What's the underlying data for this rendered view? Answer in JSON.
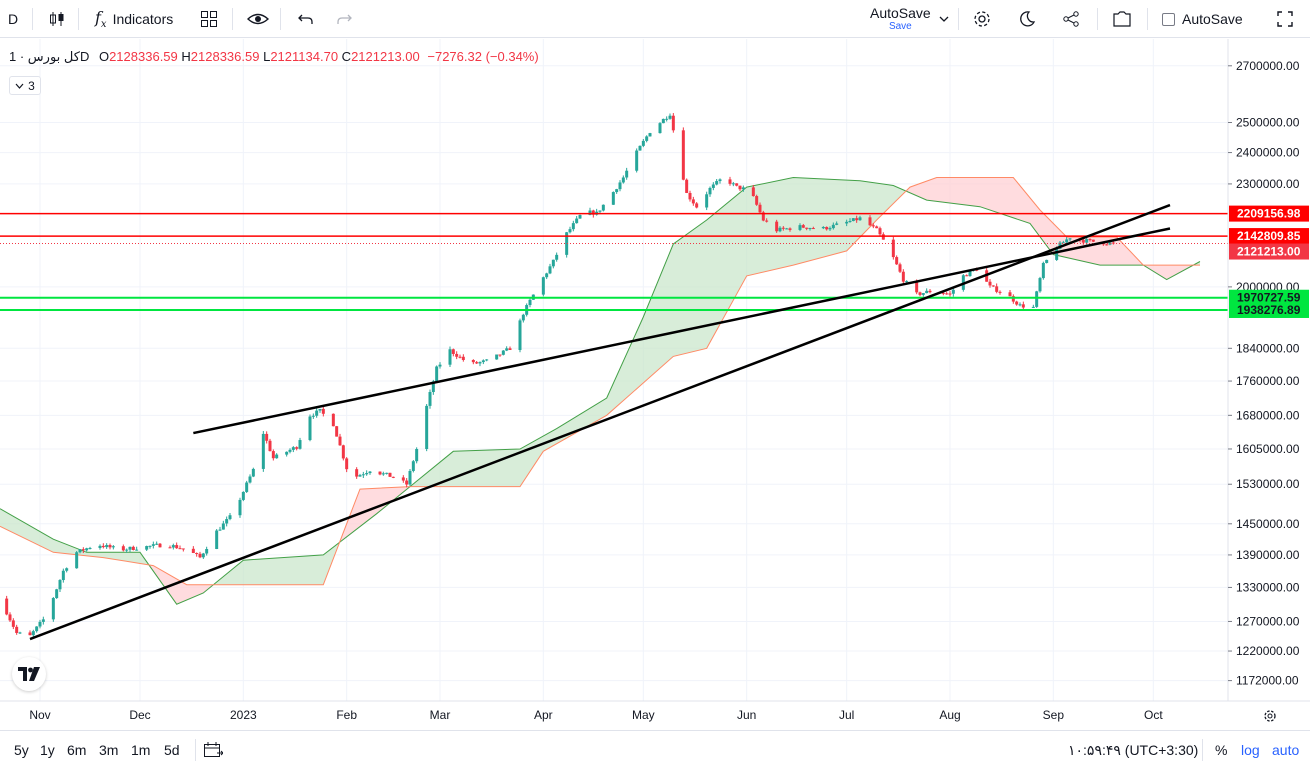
{
  "toolbar": {
    "interval": "D",
    "indicators_label": "Indicators",
    "autosave_label": "AutoSave",
    "autosave_sub": "Save",
    "autosave_checkbox_label": "AutoSave"
  },
  "legend": {
    "symbol": "کل بورس",
    "interval": "1D",
    "open_label": "O",
    "open": "2128336.59",
    "high_label": "H",
    "high": "2128336.59",
    "low_label": "L",
    "low": "2121134.70",
    "close_label": "C",
    "close": "2121213.00",
    "change": "−7276.32 (−0.34%)",
    "collapsed_count": "3"
  },
  "bottom": {
    "ranges": [
      "5y",
      "1y",
      "6m",
      "3m",
      "1m",
      "5d"
    ],
    "clock": "۱۰:۵۹:۴۹ (UTC+3:30)",
    "percent_label": "%",
    "log_label": "log",
    "auto_label": "auto"
  },
  "colors": {
    "up": "#26a69a",
    "down": "#f23645",
    "cloud_bull": "#c8e6c9",
    "cloud_bear": "#ffcdd2",
    "span_a": "#43a047",
    "span_b": "#ff8a65",
    "support": "#00e640",
    "resistance": "#ff0000"
  },
  "chart_data": {
    "type": "candlestick",
    "scale": "log",
    "ylim": [
      1140000,
      2800000
    ],
    "y_ticks": [
      2700000,
      2500000,
      2400000,
      2300000,
      2000000,
      1840000,
      1760000,
      1680000,
      1605000,
      1530000,
      1450000,
      1390000,
      1330000,
      1270000,
      1220000,
      1172000
    ],
    "y_tick_labels": [
      "2700000.00",
      "2500000.00",
      "2400000.00",
      "2300000.00",
      "2000000.00",
      "1840000.00",
      "1760000.00",
      "1680000.00",
      "1605000.00",
      "1530000.00",
      "1450000.00",
      "1390000.00",
      "1330000.00",
      "1270000.00",
      "1220000.00",
      "1172000.00"
    ],
    "x_labels": [
      {
        "label": "Nov",
        "date": "2022-11-01"
      },
      {
        "label": "Dec",
        "date": "2022-12-01"
      },
      {
        "label": "2023",
        "date": "2023-01-01"
      },
      {
        "label": "Feb",
        "date": "2023-02-01"
      },
      {
        "label": "Mar",
        "date": "2023-03-01"
      },
      {
        "label": "Apr",
        "date": "2023-04-01"
      },
      {
        "label": "May",
        "date": "2023-05-01"
      },
      {
        "label": "Jun",
        "date": "2023-06-01"
      },
      {
        "label": "Jul",
        "date": "2023-07-01"
      },
      {
        "label": "Aug",
        "date": "2023-08-01"
      },
      {
        "label": "Sep",
        "date": "2023-09-01"
      },
      {
        "label": "Oct",
        "date": "2023-10-01"
      }
    ],
    "price_levels": [
      {
        "value": 2209156.98,
        "label": "2209156.98",
        "kind": "resistance"
      },
      {
        "value": 2142809.85,
        "label": "2142809.85",
        "kind": "resistance"
      },
      {
        "value": 1970727.59,
        "label": "1970727.59",
        "kind": "support"
      },
      {
        "value": 1938276.89,
        "label": "1938276.89",
        "kind": "support"
      }
    ],
    "last_price": {
      "value": 2121213.0,
      "label": "2121213.00"
    },
    "close_path": [
      [
        "2022-10-20",
        1310000
      ],
      [
        "2022-10-25",
        1250000
      ],
      [
        "2022-10-29",
        1245000
      ],
      [
        "2022-11-03",
        1280000
      ],
      [
        "2022-11-08",
        1360000
      ],
      [
        "2022-11-12",
        1395000
      ],
      [
        "2022-11-18",
        1410000
      ],
      [
        "2022-11-25",
        1400000
      ],
      [
        "2022-12-02",
        1405000
      ],
      [
        "2022-12-09",
        1410000
      ],
      [
        "2022-12-15",
        1400000
      ],
      [
        "2022-12-19",
        1385000
      ],
      [
        "2022-12-24",
        1435000
      ],
      [
        "2022-12-29",
        1470000
      ],
      [
        "2023-01-04",
        1560000
      ],
      [
        "2023-01-07",
        1640000
      ],
      [
        "2023-01-10",
        1585000
      ],
      [
        "2023-01-17",
        1610000
      ],
      [
        "2023-01-21",
        1680000
      ],
      [
        "2023-01-24",
        1690000
      ],
      [
        "2023-01-28",
        1660000
      ],
      [
        "2023-02-02",
        1540000
      ],
      [
        "2023-02-08",
        1560000
      ],
      [
        "2023-02-15",
        1545000
      ],
      [
        "2023-02-19",
        1530000
      ],
      [
        "2023-02-22",
        1605000
      ],
      [
        "2023-02-25",
        1700000
      ],
      [
        "2023-02-28",
        1790000
      ],
      [
        "2023-03-04",
        1835000
      ],
      [
        "2023-03-10",
        1800000
      ],
      [
        "2023-03-16",
        1810000
      ],
      [
        "2023-03-22",
        1840000
      ],
      [
        "2023-03-26",
        1930000
      ],
      [
        "2023-03-31",
        2010000
      ],
      [
        "2023-04-04",
        2070000
      ],
      [
        "2023-04-08",
        2150000
      ],
      [
        "2023-04-13",
        2215000
      ],
      [
        "2023-04-17",
        2210000
      ],
      [
        "2023-04-21",
        2260000
      ],
      [
        "2023-04-25",
        2320000
      ],
      [
        "2023-04-29",
        2400000
      ],
      [
        "2023-05-03",
        2470000
      ],
      [
        "2023-05-06",
        2500000
      ],
      [
        "2023-05-09",
        2530000
      ],
      [
        "2023-05-11",
        2420000
      ],
      [
        "2023-05-14",
        2270000
      ],
      [
        "2023-05-17",
        2230000
      ],
      [
        "2023-05-21",
        2285000
      ],
      [
        "2023-05-25",
        2320000
      ],
      [
        "2023-05-29",
        2290000
      ],
      [
        "2023-06-02",
        2280000
      ],
      [
        "2023-06-06",
        2190000
      ],
      [
        "2023-06-10",
        2160000
      ],
      [
        "2023-06-17",
        2170000
      ],
      [
        "2023-06-24",
        2165000
      ],
      [
        "2023-06-30",
        2180000
      ],
      [
        "2023-07-05",
        2195000
      ],
      [
        "2023-07-10",
        2160000
      ],
      [
        "2023-07-14",
        2100000
      ],
      [
        "2023-07-18",
        2020000
      ],
      [
        "2023-07-22",
        1980000
      ],
      [
        "2023-07-27",
        1990000
      ],
      [
        "2023-08-01",
        1980000
      ],
      [
        "2023-08-05",
        2030000
      ],
      [
        "2023-08-09",
        2050000
      ],
      [
        "2023-08-13",
        2000000
      ],
      [
        "2023-08-18",
        1980000
      ],
      [
        "2023-08-22",
        1950000
      ],
      [
        "2023-08-26",
        1945000
      ],
      [
        "2023-08-29",
        2060000
      ],
      [
        "2023-09-02",
        2110000
      ],
      [
        "2023-09-06",
        2140000
      ],
      [
        "2023-09-10",
        2130000
      ],
      [
        "2023-09-15",
        2125000
      ],
      [
        "2023-09-19",
        2121213
      ]
    ],
    "ichimoku_span_a": [
      [
        "2022-10-20",
        1480000
      ],
      [
        "2022-11-05",
        1420000
      ],
      [
        "2022-11-15",
        1395000
      ],
      [
        "2022-12-01",
        1395000
      ],
      [
        "2022-12-12",
        1300000
      ],
      [
        "2022-12-20",
        1320000
      ],
      [
        "2023-01-01",
        1380000
      ],
      [
        "2023-01-25",
        1390000
      ],
      [
        "2023-02-10",
        1470000
      ],
      [
        "2023-02-20",
        1525000
      ],
      [
        "2023-03-05",
        1600000
      ],
      [
        "2023-03-25",
        1605000
      ],
      [
        "2023-04-05",
        1650000
      ],
      [
        "2023-04-20",
        1720000
      ],
      [
        "2023-05-01",
        1920000
      ],
      [
        "2023-05-10",
        2120000
      ],
      [
        "2023-05-20",
        2190000
      ],
      [
        "2023-06-01",
        2290000
      ],
      [
        "2023-06-15",
        2320000
      ],
      [
        "2023-07-05",
        2310000
      ],
      [
        "2023-07-15",
        2295000
      ],
      [
        "2023-07-25",
        2250000
      ],
      [
        "2023-08-10",
        2230000
      ],
      [
        "2023-08-25",
        2180000
      ],
      [
        "2023-09-01",
        2090000
      ],
      [
        "2023-09-15",
        2060000
      ],
      [
        "2023-09-28",
        2060000
      ],
      [
        "2023-10-05",
        2020000
      ],
      [
        "2023-10-15",
        2070000
      ]
    ],
    "ichimoku_span_b": [
      [
        "2022-10-20",
        1445000
      ],
      [
        "2022-11-05",
        1395000
      ],
      [
        "2022-11-20",
        1385000
      ],
      [
        "2022-12-05",
        1370000
      ],
      [
        "2022-12-15",
        1335000
      ],
      [
        "2023-01-01",
        1335000
      ],
      [
        "2023-01-25",
        1335000
      ],
      [
        "2023-02-05",
        1520000
      ],
      [
        "2023-02-20",
        1525000
      ],
      [
        "2023-03-10",
        1525000
      ],
      [
        "2023-03-25",
        1525000
      ],
      [
        "2023-04-01",
        1600000
      ],
      [
        "2023-04-20",
        1680000
      ],
      [
        "2023-05-10",
        1820000
      ],
      [
        "2023-05-20",
        1840000
      ],
      [
        "2023-06-01",
        2030000
      ],
      [
        "2023-06-15",
        2060000
      ],
      [
        "2023-07-01",
        2100000
      ],
      [
        "2023-07-10",
        2190000
      ],
      [
        "2023-07-20",
        2290000
      ],
      [
        "2023-07-28",
        2320000
      ],
      [
        "2023-08-20",
        2320000
      ],
      [
        "2023-08-28",
        2220000
      ],
      [
        "2023-09-05",
        2140000
      ],
      [
        "2023-09-20",
        2140000
      ],
      [
        "2023-09-28",
        2060000
      ],
      [
        "2023-10-15",
        2060000
      ]
    ],
    "trendlines": [
      {
        "from": [
          "2022-10-29",
          1240000
        ],
        "to": [
          "2023-10-06",
          2235000
        ]
      },
      {
        "from": [
          "2022-12-17",
          1640000
        ],
        "to": [
          "2023-10-06",
          2165000
        ]
      }
    ]
  }
}
